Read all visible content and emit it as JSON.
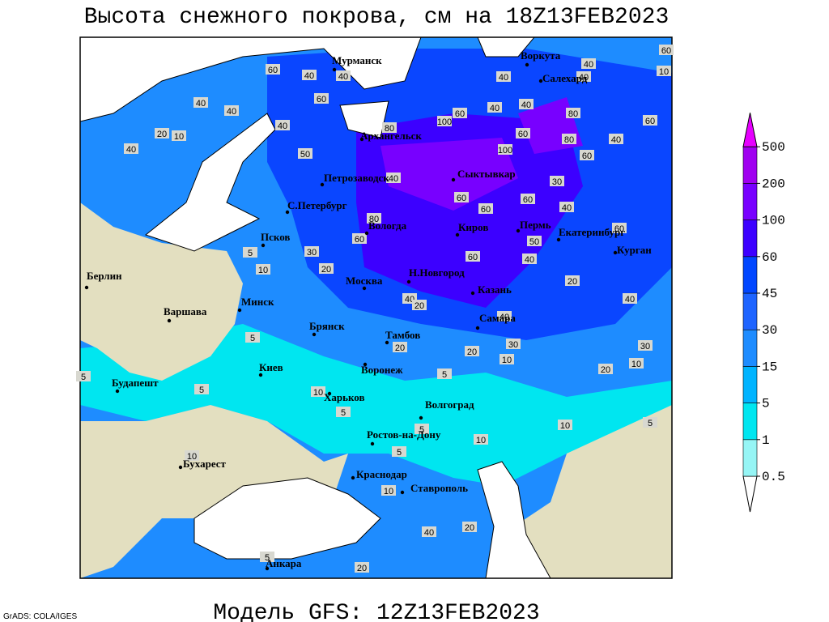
{
  "title": "Высота снежного покрова, см на 18Z13FEB2023",
  "subtitle": "Модель GFS: 12Z13FEB2023",
  "credit": "GrADS: COLA/IGES",
  "colorbar": {
    "levels": [
      0.5,
      1,
      5,
      15,
      30,
      45,
      60,
      100,
      200,
      500
    ],
    "colors": [
      "#ffffff",
      "#96f5f5",
      "#00e6f0",
      "#00b4ff",
      "#1e8cff",
      "#1e64ff",
      "#0046ff",
      "#3c00ff",
      "#7800ff",
      "#a000f0",
      "#e600ff"
    ]
  },
  "cities": [
    "Мурманск",
    "Воркута",
    "Салехард",
    "Архангельск",
    "Сыктывкар",
    "Петрозаводск",
    "С.Петербург",
    "Вологда",
    "Киров",
    "Пермь",
    "Екатеринбург",
    "Курган",
    "Псков",
    "Берлин",
    "Москва",
    "Н.Новгород",
    "Казань",
    "Варшава",
    "Минск",
    "Брянск",
    "Тамбов",
    "Самара",
    "Киев",
    "Воронеж",
    "Будапешт",
    "Харьков",
    "Волгоград",
    "Ростов-на-Дону",
    "Бухарест",
    "Краснодар",
    "Ставрополь",
    "Анкара"
  ],
  "contour_labels": [
    60,
    40,
    40,
    40,
    60,
    10,
    40,
    40,
    40,
    40,
    60,
    80,
    40,
    60,
    40,
    60,
    100,
    40,
    80,
    20,
    10,
    40,
    80,
    60,
    100,
    40,
    50,
    60,
    40,
    30,
    60,
    60,
    40,
    80,
    60,
    60,
    50,
    60,
    30,
    20,
    10,
    5,
    60,
    40,
    20,
    40,
    40,
    20,
    40,
    30,
    20,
    20,
    10,
    30,
    20,
    10,
    5,
    5,
    5,
    10,
    5,
    10,
    5,
    10,
    5,
    5,
    10,
    5,
    5,
    20,
    40,
    20,
    10
  ]
}
